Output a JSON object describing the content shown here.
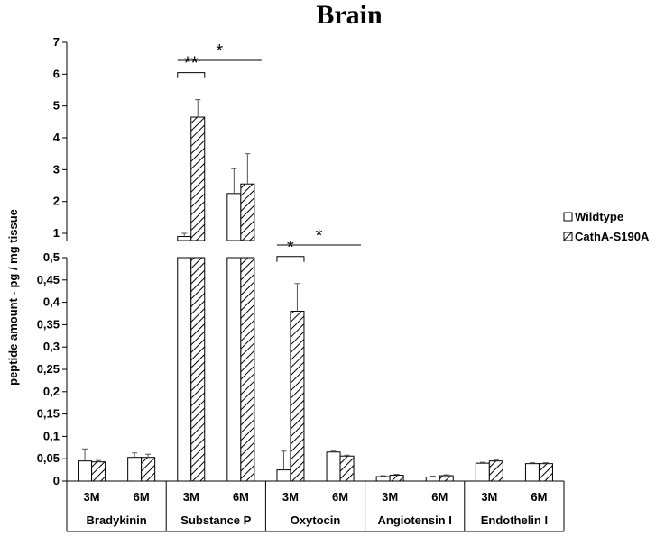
{
  "chart_data": {
    "type": "bar",
    "title": "Brain",
    "ylabel": "peptide amount - pg / mg tissue",
    "axis_break": true,
    "lower_range": [
      0,
      0.5
    ],
    "upper_range": [
      1,
      7
    ],
    "lower_ticks": [
      "0",
      "0,05",
      "0,1",
      "0,15",
      "0,2",
      "0,25",
      "0,3",
      "0,35",
      "0,4",
      "0,45",
      "0,5"
    ],
    "upper_ticks": [
      "1",
      "2",
      "3",
      "4",
      "5",
      "6",
      "7"
    ],
    "groups": [
      "Bradykinin",
      "Substance P",
      "Oxytocin",
      "Angiotensin I",
      "Endothelin I"
    ],
    "subgroups": [
      "3M",
      "6M"
    ],
    "series": [
      {
        "name": "Wildtype",
        "pattern": "white",
        "values": [
          [
            0.045,
            0.053
          ],
          [
            0.9,
            2.25
          ],
          [
            0.025,
            0.065
          ],
          [
            0.01,
            0.009
          ],
          [
            0.04,
            0.039
          ]
        ],
        "errors": [
          [
            0.027,
            0.01
          ],
          [
            0.1,
            0.78
          ],
          [
            0.042,
            0.002
          ],
          [
            0.002,
            0.002
          ],
          [
            0.002,
            0.002
          ]
        ]
      },
      {
        "name": "CathA-S190A",
        "pattern": "hatched",
        "values": [
          [
            0.043,
            0.053
          ],
          [
            4.65,
            2.55
          ],
          [
            0.38,
            0.056
          ],
          [
            0.013,
            0.012
          ],
          [
            0.045,
            0.039
          ]
        ],
        "errors": [
          [
            0.003,
            0.007
          ],
          [
            0.55,
            0.95
          ],
          [
            0.062,
            0.002
          ],
          [
            0.002,
            0.002
          ],
          [
            0.002,
            0.002
          ]
        ]
      }
    ],
    "significance": [
      {
        "label": "**",
        "group": 1,
        "span": "3M"
      },
      {
        "label": "*",
        "group": 1,
        "span": "3M-6M"
      },
      {
        "label": "*",
        "group": 2,
        "span": "3M"
      },
      {
        "label": "*",
        "group": 2,
        "span": "3M-6M"
      }
    ],
    "legend": {
      "position": "right"
    },
    "grid": false
  }
}
